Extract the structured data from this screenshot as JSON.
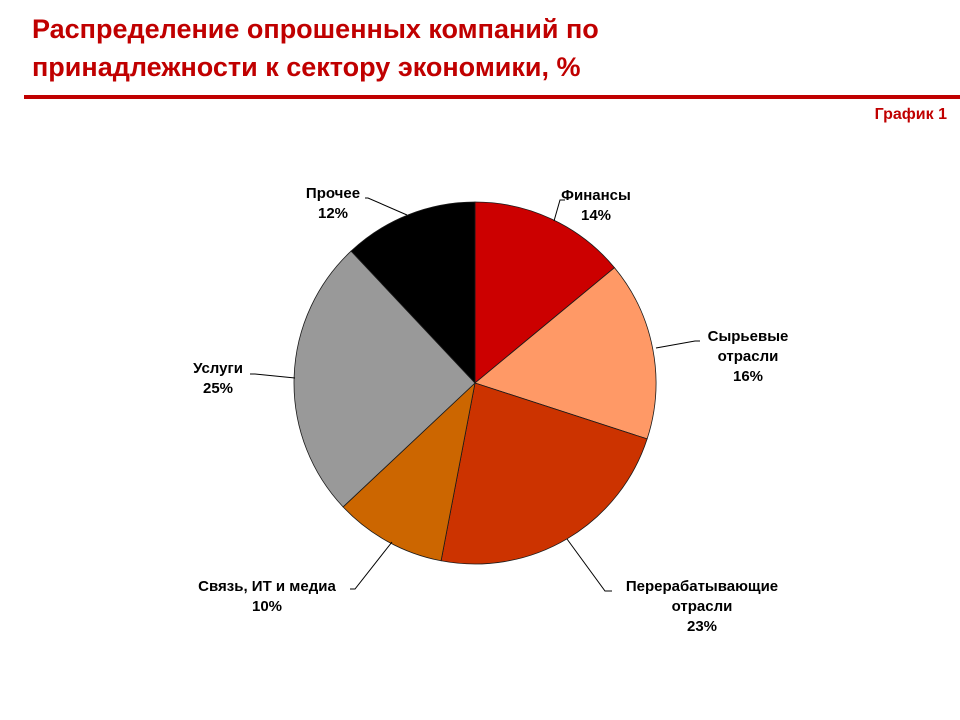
{
  "header": {
    "title_line1": "Распределение опрошенных компаний по",
    "title_line2": "принадлежности к сектору экономики, %",
    "chart_id": "График 1",
    "accent_color": "#c00000"
  },
  "chart_data": {
    "type": "pie",
    "title": "Распределение опрошенных компаний по принадлежности к сектору экономики, %",
    "unit": "%",
    "slices": [
      {
        "label_lines": [
          "Финансы"
        ],
        "label": "Финансы",
        "value": 14,
        "display": "14%",
        "color": "#cc0000"
      },
      {
        "label_lines": [
          "Сырьевые",
          "отрасли"
        ],
        "label": "Сырьевые отрасли",
        "value": 16,
        "display": "16%",
        "color": "#ff9966"
      },
      {
        "label_lines": [
          "Перерабатывающие",
          "отрасли"
        ],
        "label": "Перерабатывающие отрасли",
        "value": 23,
        "display": "23%",
        "color": "#cc3300"
      },
      {
        "label_lines": [
          "Связь, ИТ и медиа"
        ],
        "label": "Связь, ИТ и медиа",
        "value": 10,
        "display": "10%",
        "color": "#cc6600"
      },
      {
        "label_lines": [
          "Услуги"
        ],
        "label": "Услуги",
        "value": 25,
        "display": "25%",
        "color": "#999999"
      },
      {
        "label_lines": [
          "Прочее"
        ],
        "label": "Прочее",
        "value": 12,
        "display": "12%",
        "color": "#000000"
      }
    ]
  }
}
